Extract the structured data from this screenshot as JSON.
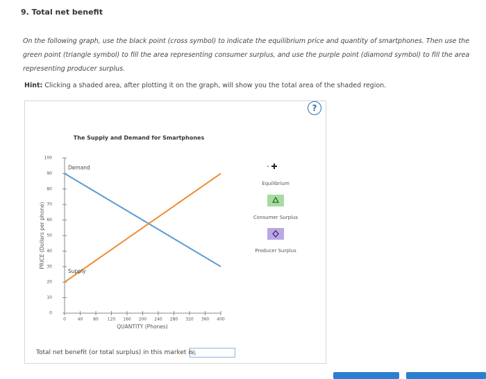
{
  "header": {
    "title": "9. Total net benefit"
  },
  "instructions": "On the following graph, use the black point (cross symbol) to indicate the equilibrium price and quantity of smartphones. Then use the green point (triangle symbol) to fill the area representing consumer surplus, and use the purple point (diamond symbol) to fill the area representing producer surplus.",
  "hint": {
    "label": "Hint:",
    "text": "Clicking a shaded area, after plotting it on the graph, will show you the total area of the shaded region."
  },
  "help_icon": "?",
  "chart_data": {
    "type": "line",
    "title": "The Supply and Demand for Smartphones",
    "x_label": "QUANTITY (Phones)",
    "y_label": "PRICE (Dollars per phone)",
    "x": [
      0,
      400
    ],
    "series": [
      {
        "name": "Demand",
        "color": "#5b9bd5",
        "values": [
          90,
          30
        ]
      },
      {
        "name": "Supply",
        "color": "#f08a30",
        "values": [
          20,
          90
        ]
      }
    ],
    "xlim": [
      0,
      400
    ],
    "xticks": [
      0,
      40,
      80,
      120,
      160,
      200,
      240,
      280,
      320,
      360,
      400
    ],
    "ylim": [
      0,
      100
    ],
    "yticks": [
      0,
      10,
      20,
      30,
      40,
      50,
      60,
      70,
      80,
      90,
      100
    ]
  },
  "legend": [
    "Equilibrium",
    "Consumer Surplus",
    "Producer Surplus"
  ],
  "answer": {
    "prompt": "Total net benefit (or total surplus) in this market is",
    "prefix": "$"
  }
}
